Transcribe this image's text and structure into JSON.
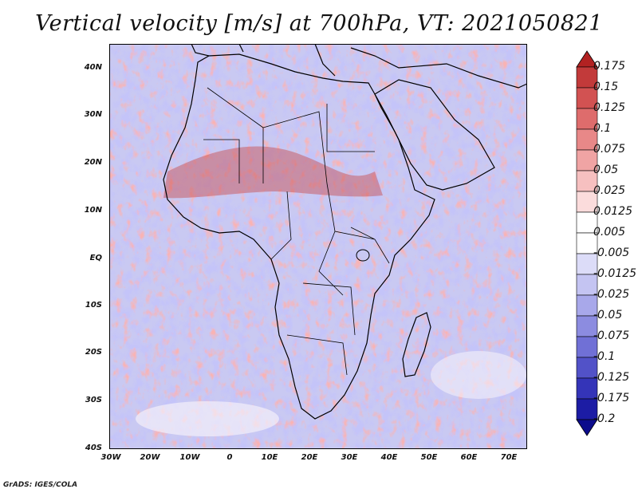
{
  "title": "Vertical velocity [m/s] at 700hPa, VT: 2021050821",
  "credit": "GrADS: IGES/COLA",
  "map": {
    "region": "Africa",
    "variable": "Vertical velocity",
    "units": "m/s",
    "level": "700hPa",
    "valid_time": "2021050821",
    "lon_range": [
      -30,
      75
    ],
    "lat_range": [
      -40,
      45
    ],
    "y_ticks": [
      "40N",
      "30N",
      "20N",
      "10N",
      "EQ",
      "10S",
      "20S",
      "30S",
      "40S"
    ],
    "x_ticks": [
      "30W",
      "20W",
      "10W",
      "0",
      "10E",
      "20E",
      "30E",
      "40E",
      "50E",
      "60E",
      "70E"
    ]
  },
  "colorbar": {
    "labels": [
      "0.175",
      "0.15",
      "0.125",
      "0.1",
      "0.075",
      "0.05",
      "0.025",
      "0.0125",
      "0.005",
      "-0.005",
      "-0.0125",
      "-0.025",
      "-0.05",
      "-0.075",
      "-0.1",
      "-0.125",
      "-0.175",
      "-0.2"
    ],
    "colors": [
      "#b22222",
      "#c23a3a",
      "#d25252",
      "#de6c6c",
      "#e88888",
      "#f0a4a4",
      "#f6c0c0",
      "#fbdcdc",
      "#ffffff",
      "#ffffff",
      "#dcdcf8",
      "#c4c4f2",
      "#a8a8ea",
      "#8c8ce0",
      "#7070d6",
      "#5252c8",
      "#3434b8",
      "#1c1ca4",
      "#0c0c8c"
    ]
  }
}
